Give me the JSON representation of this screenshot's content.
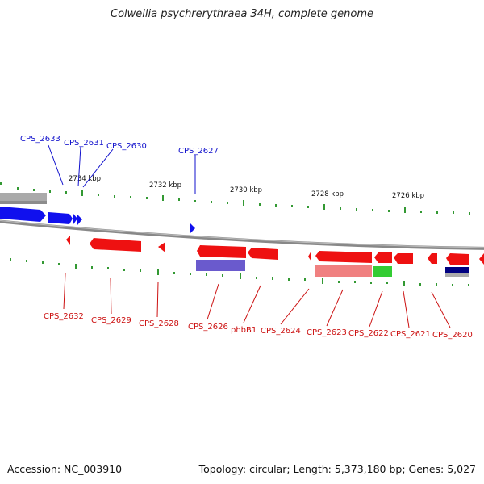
{
  "title": "Colwellia psychrerythraea 34H, complete genome",
  "footer": {
    "accession": "Accession: NC_003910",
    "summary": "Topology: circular; Length: 5,373,180 bp; Genes: 5,027"
  },
  "colors": {
    "forward": "#0000ee",
    "reverse": "#ee0000",
    "backbone": "#888888",
    "ticks": "#339933",
    "cds_blue": "#6a5acd",
    "cds_pink": "#f08080",
    "cds_green": "#33cc33",
    "cds_navy": "#000080",
    "cds_gray": "#aaaaaa"
  },
  "scale_labels": [
    "2734 kbp",
    "2732 kbp",
    "2730 kbp",
    "2728 kbp",
    "2726 kbp"
  ],
  "forward_genes": [
    "CPS_2633",
    "CPS_2631",
    "CPS_2630",
    "CPS_2627"
  ],
  "reverse_genes": [
    "CPS_2632",
    "CPS_2629",
    "CPS_2628",
    "CPS_2626",
    "phbB1",
    "CPS_2624",
    "CPS_2623",
    "CPS_2622",
    "CPS_2621",
    "CPS_2620"
  ]
}
